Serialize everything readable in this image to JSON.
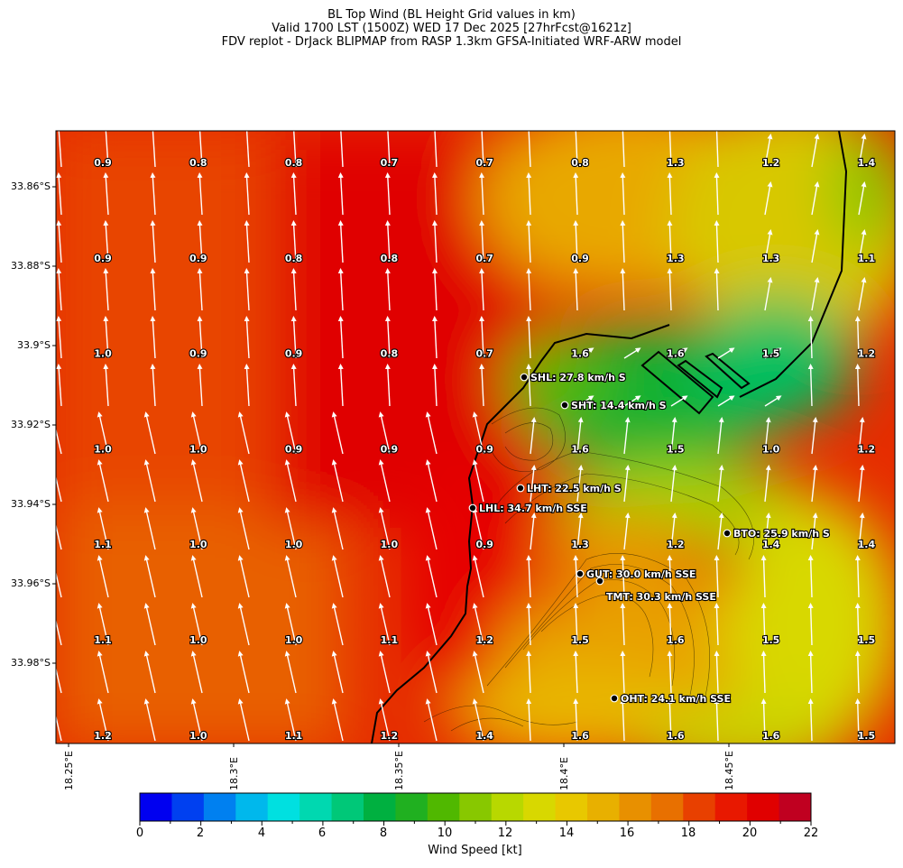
{
  "title": {
    "line1": "BL Top Wind (BL Height Grid values in km)",
    "line2": "Valid 1700 LST (1500Z) WED 17 Dec 2025 [27hrFcst@1621z]",
    "line3": "FDV replot - DrJack BLIPMAP from RASP 1.3km GFSA-Initiated WRF-ARW model"
  },
  "lat_labels": [
    "33.86°S",
    "33.88°S",
    "33.9°S",
    "33.92°S",
    "33.94°S",
    "33.96°S",
    "33.98°S"
  ],
  "lon_labels": [
    "18.25°E",
    "18.3°E",
    "18.35°E",
    "18.4°E",
    "18.45°E"
  ],
  "grid_values": [
    [
      "0.9",
      "0.8",
      "0.8",
      "0.7",
      "0.7",
      "0.8",
      "1.3",
      "1.2",
      "1.4"
    ],
    [
      "0.9",
      "0.9",
      "0.8",
      "0.8",
      "0.7",
      "0.9",
      "1.3",
      "1.3",
      "1.1"
    ],
    [
      "1.0",
      "0.9",
      "0.9",
      "0.8",
      "0.7",
      "1.6",
      "1.6",
      "1.5",
      "1.2"
    ],
    [
      "1.0",
      "1.0",
      "0.9",
      "0.9",
      "0.9",
      "1.6",
      "1.5",
      "1.0",
      "1.2"
    ],
    [
      "1.1",
      "1.0",
      "1.0",
      "1.0",
      "0.9",
      "1.3",
      "1.2",
      "1.4",
      "1.4"
    ],
    [
      "1.1",
      "1.0",
      "1.0",
      "1.1",
      "1.2",
      "1.5",
      "1.6",
      "1.5",
      "1.5"
    ],
    [
      "1.2",
      "1.0",
      "1.1",
      "1.2",
      "1.4",
      "1.6",
      "1.6",
      "1.6",
      "1.5"
    ]
  ],
  "stations": [
    {
      "label": "SHL: 27.8 km/h S"
    },
    {
      "label": "SHT: 14.4 km/h S"
    },
    {
      "label": "LHT: 22.5 km/h S"
    },
    {
      "label": "LHL: 34.7 km/h SSE"
    },
    {
      "label": "BTO: 25.9 km/h S"
    },
    {
      "label": "GUT: 30.0 km/h SSE"
    },
    {
      "label": "TMT: 30.3 km/h SSE"
    },
    {
      "label": "OHT: 24.1 km/h SSE"
    }
  ],
  "colorbar": {
    "label": "Wind Speed [kt]",
    "ticks": [
      "0",
      "2",
      "4",
      "6",
      "8",
      "10",
      "12",
      "14",
      "16",
      "18",
      "20",
      "22"
    ],
    "colors": [
      "#0000f0",
      "#0040f0",
      "#0080f0",
      "#00b8ec",
      "#00e0e0",
      "#00d8b0",
      "#00c878",
      "#00b040",
      "#20b020",
      "#50b800",
      "#88c800",
      "#b8d800",
      "#d8d800",
      "#e8c800",
      "#e8b000",
      "#e89000",
      "#e87000",
      "#e84000",
      "#e81800",
      "#e00000",
      "#c00020"
    ]
  }
}
